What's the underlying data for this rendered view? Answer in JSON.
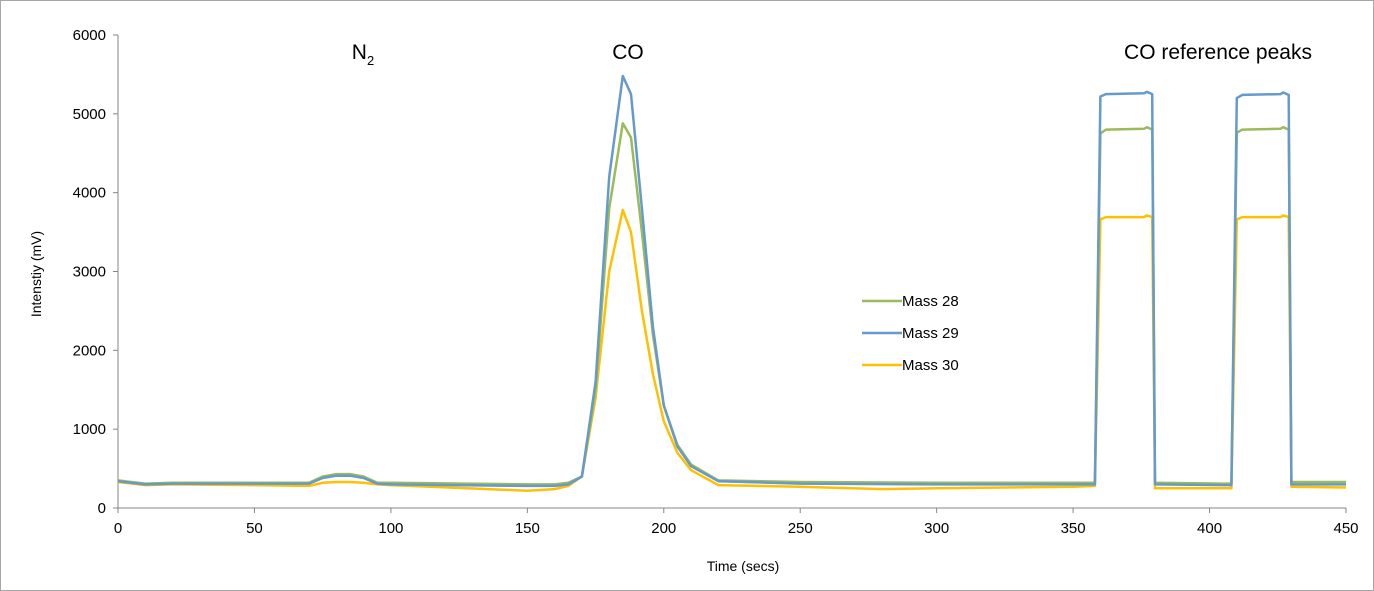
{
  "chart_data": {
    "type": "line",
    "title": "",
    "xlabel": "Time (secs)",
    "ylabel": "Intenstiy (mV)",
    "xlim": [
      0,
      450
    ],
    "ylim": [
      0,
      6000
    ],
    "x_ticks": [
      0,
      50,
      100,
      150,
      200,
      250,
      300,
      350,
      400,
      450
    ],
    "y_ticks": [
      0,
      1000,
      2000,
      3000,
      4000,
      5000,
      6000
    ],
    "grid": false,
    "legend_position": "center-right",
    "annotations": [
      {
        "text": "N",
        "subscript": "2",
        "x": 85,
        "y": 5650
      },
      {
        "text": "CO",
        "x": 185,
        "y": 5650
      },
      {
        "text": "CO reference peaks",
        "x": 395,
        "y": 5650
      }
    ],
    "series": [
      {
        "name": "Mass 28",
        "color": "#9bbb59",
        "points": [
          [
            0,
            350
          ],
          [
            10,
            310
          ],
          [
            20,
            320
          ],
          [
            50,
            320
          ],
          [
            70,
            320
          ],
          [
            75,
            400
          ],
          [
            80,
            430
          ],
          [
            85,
            430
          ],
          [
            90,
            400
          ],
          [
            95,
            320
          ],
          [
            100,
            320
          ],
          [
            150,
            300
          ],
          [
            160,
            300
          ],
          [
            165,
            320
          ],
          [
            170,
            400
          ],
          [
            175,
            1500
          ],
          [
            180,
            3800
          ],
          [
            185,
            4880
          ],
          [
            188,
            4700
          ],
          [
            192,
            3500
          ],
          [
            196,
            2200
          ],
          [
            200,
            1300
          ],
          [
            205,
            800
          ],
          [
            210,
            550
          ],
          [
            220,
            350
          ],
          [
            250,
            330
          ],
          [
            300,
            320
          ],
          [
            350,
            320
          ],
          [
            358,
            320
          ],
          [
            360,
            4750
          ],
          [
            362,
            4800
          ],
          [
            376,
            4810
          ],
          [
            377,
            4830
          ],
          [
            379,
            4800
          ],
          [
            380,
            320
          ],
          [
            405,
            310
          ],
          [
            408,
            310
          ],
          [
            410,
            4760
          ],
          [
            412,
            4800
          ],
          [
            426,
            4810
          ],
          [
            427,
            4830
          ],
          [
            429,
            4800
          ],
          [
            430,
            330
          ],
          [
            450,
            330
          ]
        ]
      },
      {
        "name": "Mass 29",
        "color": "#6699cc",
        "points": [
          [
            0,
            340
          ],
          [
            10,
            300
          ],
          [
            20,
            310
          ],
          [
            50,
            310
          ],
          [
            70,
            310
          ],
          [
            75,
            380
          ],
          [
            80,
            410
          ],
          [
            85,
            410
          ],
          [
            90,
            380
          ],
          [
            95,
            310
          ],
          [
            100,
            300
          ],
          [
            150,
            280
          ],
          [
            160,
            280
          ],
          [
            165,
            300
          ],
          [
            170,
            400
          ],
          [
            175,
            1600
          ],
          [
            180,
            4200
          ],
          [
            185,
            5480
          ],
          [
            188,
            5250
          ],
          [
            192,
            3800
          ],
          [
            196,
            2300
          ],
          [
            200,
            1300
          ],
          [
            205,
            780
          ],
          [
            210,
            530
          ],
          [
            220,
            340
          ],
          [
            250,
            310
          ],
          [
            300,
            300
          ],
          [
            350,
            300
          ],
          [
            358,
            300
          ],
          [
            360,
            5220
          ],
          [
            362,
            5250
          ],
          [
            376,
            5260
          ],
          [
            377,
            5280
          ],
          [
            379,
            5250
          ],
          [
            380,
            300
          ],
          [
            405,
            290
          ],
          [
            408,
            290
          ],
          [
            410,
            5200
          ],
          [
            412,
            5240
          ],
          [
            426,
            5250
          ],
          [
            427,
            5270
          ],
          [
            429,
            5240
          ],
          [
            430,
            300
          ],
          [
            450,
            300
          ]
        ]
      },
      {
        "name": "Mass 30",
        "color": "#ffc000",
        "points": [
          [
            0,
            330
          ],
          [
            10,
            290
          ],
          [
            20,
            300
          ],
          [
            50,
            290
          ],
          [
            70,
            280
          ],
          [
            75,
            320
          ],
          [
            80,
            330
          ],
          [
            85,
            330
          ],
          [
            90,
            320
          ],
          [
            95,
            300
          ],
          [
            100,
            290
          ],
          [
            150,
            220
          ],
          [
            160,
            240
          ],
          [
            165,
            280
          ],
          [
            170,
            400
          ],
          [
            175,
            1400
          ],
          [
            180,
            3000
          ],
          [
            185,
            3780
          ],
          [
            188,
            3500
          ],
          [
            192,
            2500
          ],
          [
            196,
            1700
          ],
          [
            200,
            1100
          ],
          [
            205,
            700
          ],
          [
            210,
            480
          ],
          [
            220,
            290
          ],
          [
            250,
            270
          ],
          [
            280,
            240
          ],
          [
            300,
            250
          ],
          [
            350,
            270
          ],
          [
            358,
            280
          ],
          [
            360,
            3660
          ],
          [
            362,
            3690
          ],
          [
            376,
            3690
          ],
          [
            377,
            3710
          ],
          [
            379,
            3690
          ],
          [
            380,
            250
          ],
          [
            405,
            250
          ],
          [
            408,
            250
          ],
          [
            410,
            3660
          ],
          [
            412,
            3690
          ],
          [
            426,
            3690
          ],
          [
            427,
            3710
          ],
          [
            429,
            3690
          ],
          [
            430,
            270
          ],
          [
            450,
            260
          ]
        ]
      }
    ]
  }
}
